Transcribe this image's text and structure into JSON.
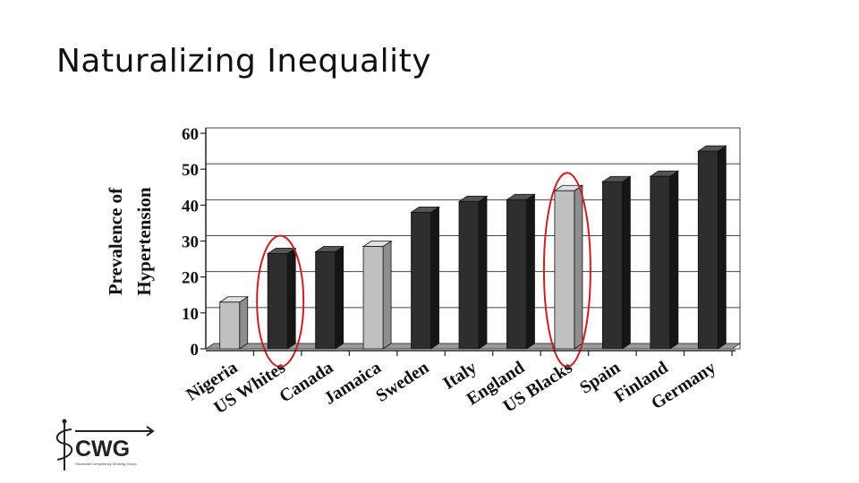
{
  "slide": {
    "title": "Naturalizing Inequality"
  },
  "chart_data": {
    "type": "bar",
    "categories": [
      "Nigeria",
      "US Whites",
      "Canada",
      "Jamaica",
      "Sweden",
      "Italy",
      "England",
      "US Blacks",
      "Spain",
      "Finland",
      "Germany"
    ],
    "values": [
      13,
      26.5,
      27,
      28.5,
      38,
      41,
      41.5,
      44,
      46.5,
      48,
      55
    ],
    "bar_colors": [
      "#c0c0c0",
      "#2e2e2e",
      "#2e2e2e",
      "#c0c0c0",
      "#2e2e2e",
      "#2e2e2e",
      "#2e2e2e",
      "#c0c0c0",
      "#2e2e2e",
      "#2e2e2e",
      "#2e2e2e"
    ],
    "highlighted": [
      "US Whites",
      "US Blacks"
    ],
    "highlight_color": "#cc1f1f",
    "ylabel_line1": "Prevalence of",
    "ylabel_line2": "Hypertension",
    "ylim": [
      0,
      60
    ],
    "yticks": [
      0,
      10,
      20,
      30,
      40,
      50,
      60
    ],
    "grid": true
  },
  "logo": {
    "text": "CWG",
    "subtitle": "Structural Competency Working Group"
  }
}
